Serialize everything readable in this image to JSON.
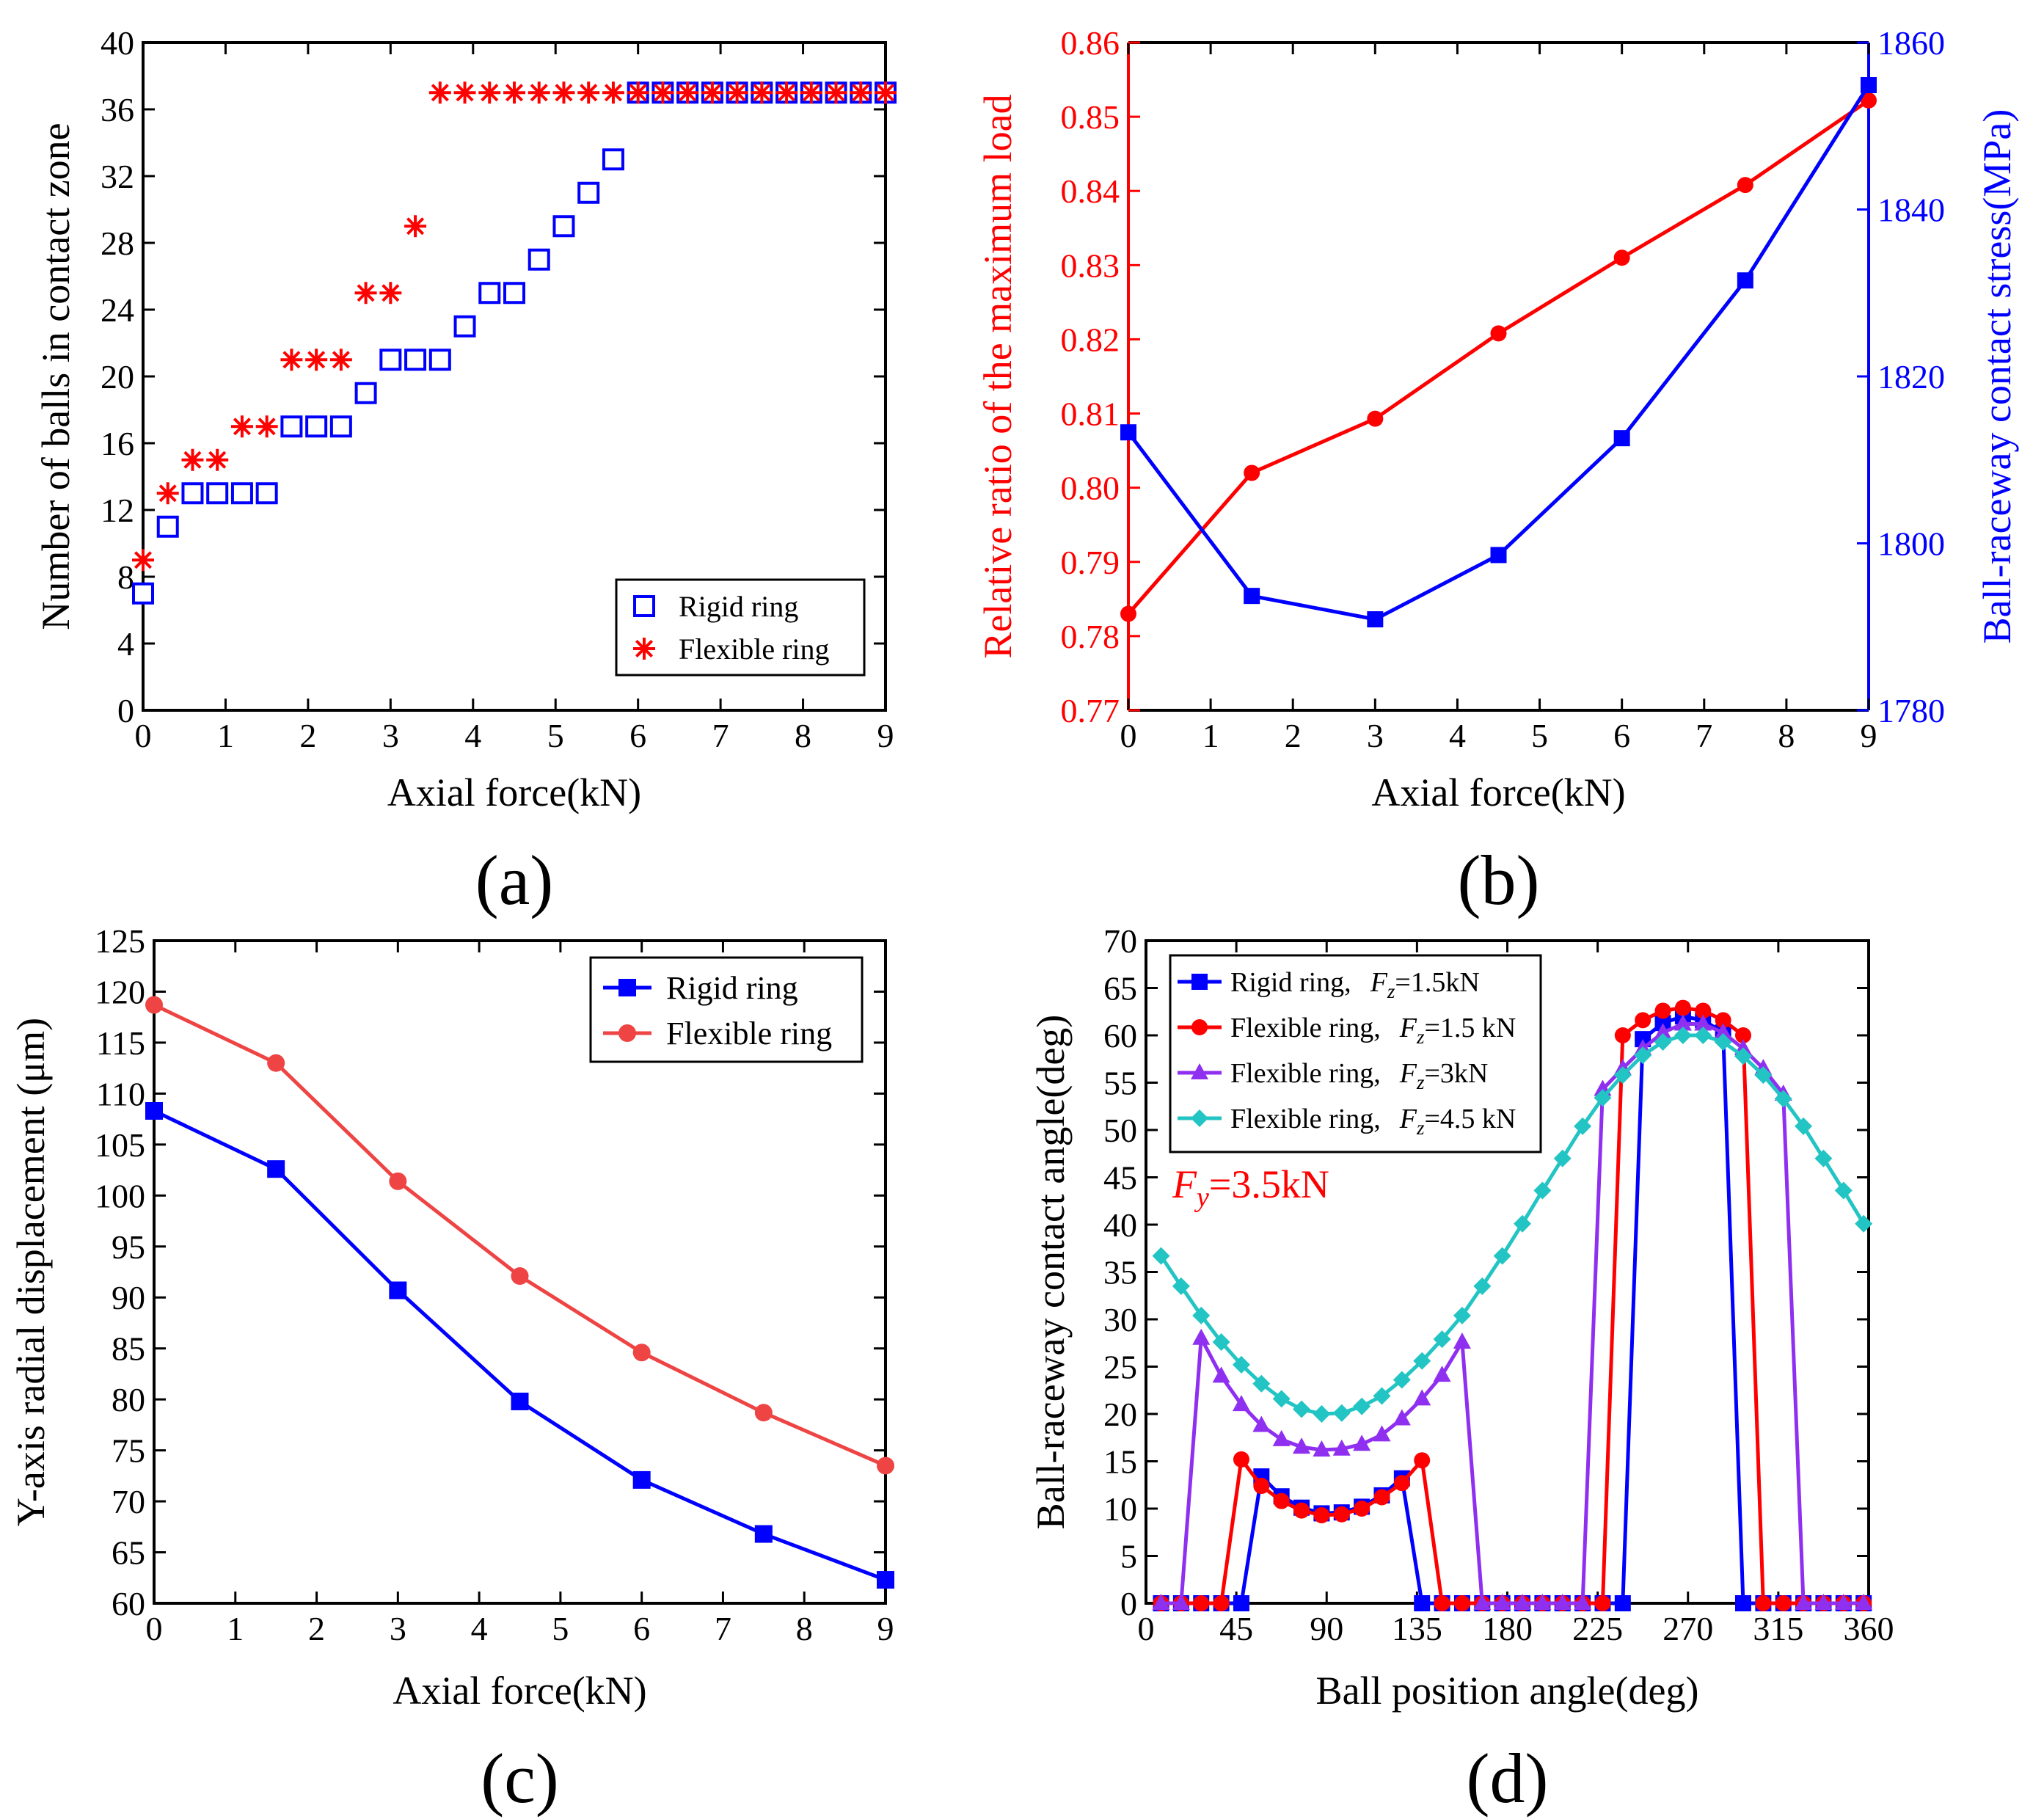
{
  "colors": {
    "rigid": "#0000ff",
    "flexible": "#ff0000",
    "flex_c": "#ee4444",
    "purple": "#8f2ff0",
    "cyan": "#22c4c4",
    "axis": "#000000"
  },
  "chart_data": [
    {
      "id": "a",
      "type": "scatter",
      "panel_label": "(a)",
      "xlabel": "Axial force(kN)",
      "ylabel": "Number of balls in contact zone",
      "xlim": [
        0,
        9
      ],
      "ylim": [
        0,
        40
      ],
      "xticks": [
        0,
        1,
        2,
        3,
        4,
        5,
        6,
        7,
        8,
        9
      ],
      "yticks": [
        0,
        4,
        8,
        12,
        16,
        20,
        24,
        28,
        32,
        36,
        40
      ],
      "legend": "bottom-right",
      "series": [
        {
          "name": "Rigid ring",
          "marker": "square-open",
          "color": "#0000ff",
          "x": [
            0,
            0.3,
            0.6,
            0.9,
            1.2,
            1.5,
            1.8,
            2.1,
            2.4,
            2.7,
            3.0,
            3.3,
            3.6,
            3.9,
            4.2,
            4.5,
            4.8,
            5.1,
            5.4,
            5.7,
            6.0,
            6.3,
            6.6,
            6.9,
            7.2,
            7.5,
            7.8,
            8.1,
            8.4,
            8.7,
            9.0
          ],
          "y": [
            7,
            11,
            13,
            13,
            13,
            13,
            17,
            17,
            17,
            19,
            21,
            21,
            21,
            23,
            25,
            25,
            27,
            29,
            31,
            33,
            37,
            37,
            37,
            37,
            37,
            37,
            37,
            37,
            37,
            37,
            37
          ]
        },
        {
          "name": "Flexible ring",
          "marker": "asterisk",
          "color": "#ff0000",
          "x": [
            0,
            0.3,
            0.6,
            0.9,
            1.2,
            1.5,
            1.8,
            2.1,
            2.4,
            2.7,
            3.0,
            3.3,
            3.6,
            3.9,
            4.2,
            4.5,
            4.8,
            5.1,
            5.4,
            5.7,
            6.0,
            6.3,
            6.6,
            6.9,
            7.2,
            7.5,
            7.8,
            8.1,
            8.4,
            8.7,
            9.0
          ],
          "y": [
            9,
            13,
            15,
            15,
            17,
            17,
            21,
            21,
            21,
            25,
            25,
            29,
            37,
            37,
            37,
            37,
            37,
            37,
            37,
            37,
            37,
            37,
            37,
            37,
            37,
            37,
            37,
            37,
            37,
            37,
            37
          ]
        }
      ]
    },
    {
      "id": "b",
      "type": "line",
      "panel_label": "(b)",
      "xlabel": "Axial force(kN)",
      "ylabel_left": "Relative ratio of the maximum load",
      "ylabel_right": "Ball-raceway contact stress(MPa)",
      "xlim": [
        0,
        9
      ],
      "ylim_left": [
        0.77,
        0.86
      ],
      "ylim_right": [
        1780,
        1860
      ],
      "xticks": [
        0,
        1,
        2,
        3,
        4,
        5,
        6,
        7,
        8,
        9
      ],
      "yticks_left": [
        "0.77",
        "0.78",
        "0.79",
        "0.80",
        "0.81",
        "0.82",
        "0.83",
        "0.84",
        "0.85",
        "0.86"
      ],
      "yticks_right": [
        1780,
        1800,
        1820,
        1840,
        1860
      ],
      "series": [
        {
          "name": "Relative ratio",
          "axis": "left",
          "marker": "circle",
          "color": "#ff0000",
          "x": [
            0,
            1.5,
            3,
            4.5,
            6,
            7.5,
            9
          ],
          "y": [
            0.783,
            0.802,
            0.8093,
            0.8208,
            0.831,
            0.8408,
            0.8522
          ]
        },
        {
          "name": "Contact stress",
          "axis": "right",
          "marker": "square",
          "color": "#0000ff",
          "x": [
            0,
            1.5,
            3,
            4.5,
            6,
            7.5,
            9
          ],
          "y": [
            1813.3,
            1793.7,
            1790.9,
            1798.6,
            1812.6,
            1831.5,
            1854.9
          ]
        }
      ]
    },
    {
      "id": "c",
      "type": "line",
      "panel_label": "(c)",
      "xlabel": "Axial force(kN)",
      "ylabel": "Y-axis radial displacement (μm)",
      "xlim": [
        0,
        9
      ],
      "ylim": [
        60,
        125
      ],
      "xticks": [
        0,
        1,
        2,
        3,
        4,
        5,
        6,
        7,
        8,
        9
      ],
      "yticks": [
        60,
        65,
        70,
        75,
        80,
        85,
        90,
        95,
        100,
        105,
        110,
        115,
        120,
        125
      ],
      "legend": "top-right",
      "series": [
        {
          "name": "Rigid ring",
          "marker": "square",
          "color": "#0000ff",
          "x": [
            0,
            1.5,
            3,
            4.5,
            6,
            7.5,
            9
          ],
          "y": [
            108.3,
            102.6,
            90.7,
            79.8,
            72.1,
            66.8,
            62.3
          ]
        },
        {
          "name": "Flexible ring",
          "marker": "circle",
          "color": "#ee4444",
          "x": [
            0,
            1.5,
            3,
            4.5,
            6,
            7.5,
            9
          ],
          "y": [
            118.7,
            113.0,
            101.4,
            92.1,
            84.6,
            78.7,
            73.5
          ]
        }
      ]
    },
    {
      "id": "d",
      "type": "line",
      "panel_label": "(d)",
      "xlabel": "Ball position angle(deg)",
      "ylabel": "Ball-raceway contact angle(deg)",
      "xlim": [
        0,
        360
      ],
      "ylim": [
        0,
        70
      ],
      "xticks": [
        0,
        45,
        90,
        135,
        180,
        225,
        270,
        315,
        360
      ],
      "yticks": [
        0,
        5,
        10,
        15,
        20,
        25,
        30,
        35,
        40,
        45,
        50,
        55,
        60,
        65,
        70
      ],
      "legend": "top-left",
      "annotation": {
        "F": "F",
        "sub": "y",
        "value": "=3.5kN",
        "color": "#ff0000"
      },
      "x": [
        7.5,
        17.5,
        27.5,
        37.5,
        47.5,
        57.5,
        67.5,
        77.5,
        87.5,
        97.5,
        107.5,
        117.5,
        127.5,
        137.5,
        147.5,
        157.5,
        167.5,
        177.5,
        187.5,
        197.5,
        207.5,
        217.5,
        227.5,
        237.5,
        247.5,
        257.5,
        267.5,
        277.5,
        287.5,
        297.5,
        307.5,
        317.5,
        327.5,
        337.5,
        347.5,
        357.5
      ],
      "series": [
        {
          "name_prefix": "Rigid ring,",
          "F": "F",
          "sub": "z",
          "value": "=1.5kN",
          "marker": "square",
          "color": "#0000ff",
          "y": [
            0,
            0,
            0,
            0,
            0,
            13.4,
            11.3,
            10.1,
            9.5,
            9.6,
            10.2,
            11.4,
            13.2,
            0,
            0,
            0,
            0,
            0,
            0,
            0,
            0,
            0,
            0,
            0,
            59.6,
            61.3,
            62.0,
            61.6,
            60.3,
            0,
            0,
            0,
            0,
            0,
            0,
            0
          ]
        },
        {
          "name_prefix": "Flexible ring,",
          "F": "F",
          "sub": "z",
          "value": "=1.5 kN",
          "marker": "circle",
          "color": "#ff0000",
          "y": [
            0,
            0,
            0,
            0,
            15.2,
            12.4,
            10.8,
            9.8,
            9.3,
            9.4,
            10.0,
            11.2,
            12.7,
            15.1,
            0,
            0,
            0,
            0,
            0,
            0,
            0,
            0,
            0,
            60.0,
            61.6,
            62.6,
            62.9,
            62.6,
            61.6,
            60.0,
            0,
            0,
            0,
            0,
            0,
            0
          ]
        },
        {
          "name_prefix": "Flexible ring,",
          "F": "F",
          "sub": "z",
          "value": "=3kN",
          "marker": "triangle",
          "color": "#8f2ff0",
          "y": [
            0,
            0,
            28.0,
            24.0,
            21.0,
            18.8,
            17.3,
            16.5,
            16.2,
            16.3,
            16.8,
            17.8,
            19.5,
            21.6,
            24.1,
            27.6,
            0,
            0,
            0,
            0,
            0,
            0,
            54.3,
            56.5,
            58.6,
            60.3,
            61.2,
            61.2,
            60.3,
            58.6,
            56.5,
            53.8,
            0,
            0,
            0,
            0
          ]
        },
        {
          "name_prefix": "Flexible ring,",
          "F": "F",
          "sub": "z",
          "value": "=4.5 kN",
          "marker": "diamond",
          "color": "#22c4c4",
          "y": [
            36.7,
            33.5,
            30.4,
            27.6,
            25.2,
            23.2,
            21.6,
            20.5,
            20.0,
            20.1,
            20.8,
            21.9,
            23.6,
            25.6,
            27.9,
            30.4,
            33.5,
            36.7,
            40.1,
            43.6,
            47.0,
            50.4,
            53.4,
            55.8,
            57.9,
            59.3,
            60.0,
            60.0,
            59.3,
            57.8,
            55.8,
            53.3,
            50.4,
            47.0,
            43.6,
            40.1
          ]
        }
      ]
    }
  ]
}
